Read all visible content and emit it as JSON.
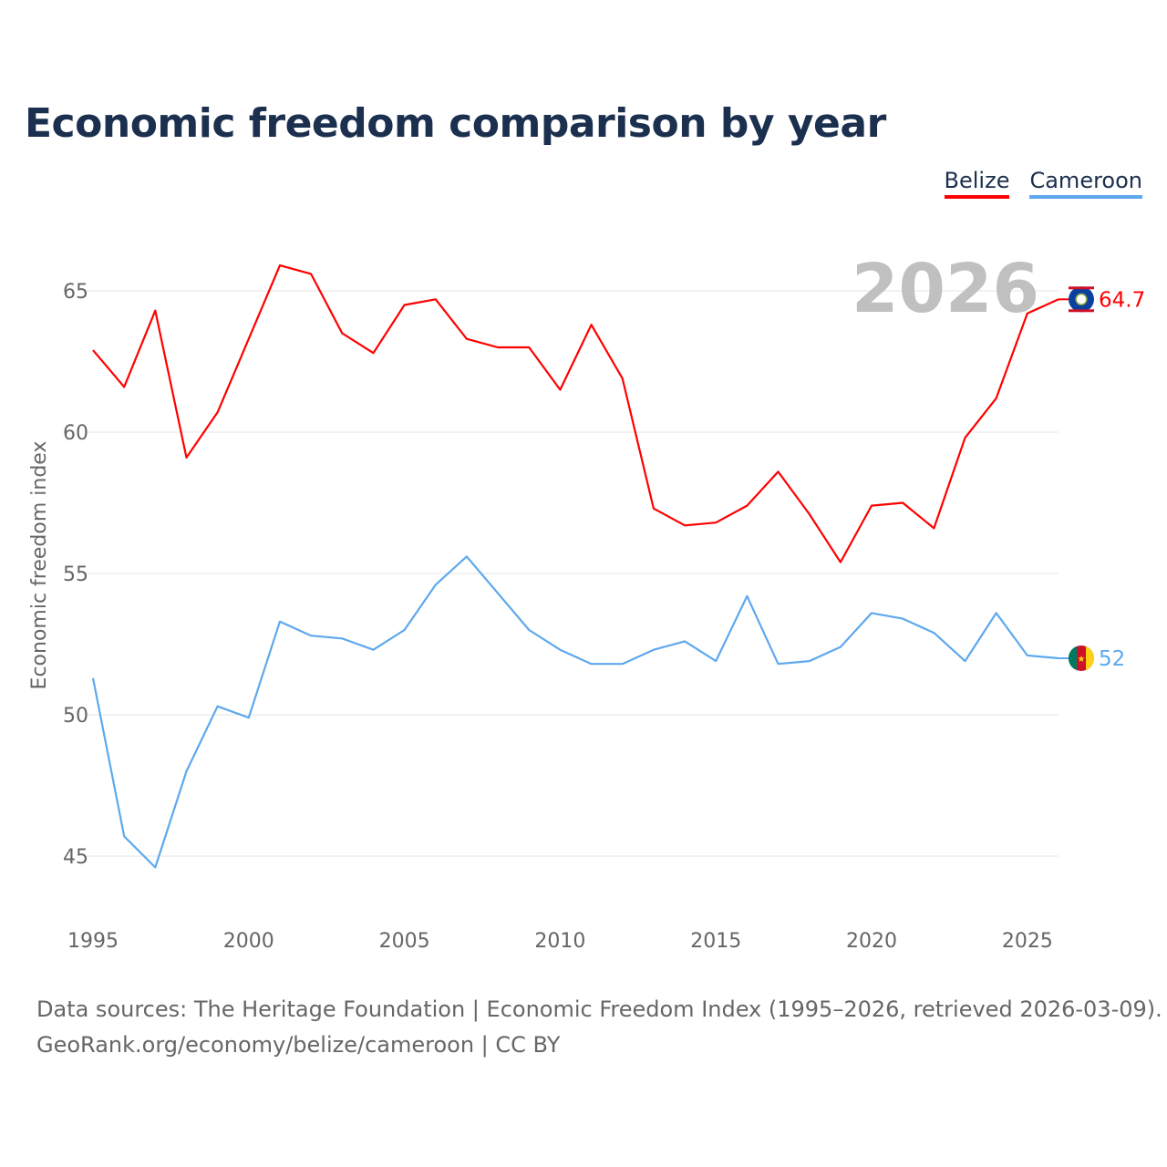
{
  "chart_data": {
    "type": "line",
    "title": "Economic freedom comparison by year",
    "xlabel": "",
    "ylabel": "Economic freedom index",
    "x": [
      1995,
      1996,
      1997,
      1998,
      1999,
      2000,
      2001,
      2002,
      2003,
      2004,
      2005,
      2006,
      2007,
      2008,
      2009,
      2010,
      2011,
      2012,
      2013,
      2014,
      2015,
      2016,
      2017,
      2018,
      2019,
      2020,
      2021,
      2022,
      2023,
      2024,
      2025,
      2026
    ],
    "xticks": [
      "1995",
      "2000",
      "2005",
      "2010",
      "2015",
      "2020",
      "2025"
    ],
    "yticks": [
      "45",
      "50",
      "55",
      "60",
      "65"
    ],
    "ylim": [
      43,
      67.5
    ],
    "xlim": [
      1995,
      2026
    ],
    "grid": true,
    "legend_placement": "top-right",
    "year_label": "2026",
    "series": [
      {
        "name": "Belize",
        "color": "#ff0000",
        "end_label": "64.7",
        "values": [
          62.9,
          61.6,
          64.3,
          59.1,
          60.7,
          63.3,
          65.9,
          65.6,
          63.5,
          62.8,
          64.5,
          64.7,
          63.3,
          63.0,
          63.0,
          61.5,
          63.8,
          61.9,
          57.3,
          56.7,
          56.8,
          57.4,
          58.6,
          57.1,
          55.4,
          57.4,
          57.5,
          56.6,
          59.8,
          61.2,
          64.2,
          64.7
        ]
      },
      {
        "name": "Cameroon",
        "color": "#5ea8ee",
        "end_label": "52",
        "values": [
          51.3,
          45.7,
          44.6,
          48.0,
          50.3,
          49.9,
          53.3,
          52.8,
          52.7,
          52.3,
          53.0,
          54.6,
          55.6,
          54.3,
          53.0,
          52.3,
          51.8,
          51.8,
          52.3,
          52.6,
          51.9,
          54.2,
          51.8,
          51.9,
          52.4,
          53.6,
          53.4,
          52.9,
          51.9,
          53.6,
          52.1,
          52.0
        ]
      }
    ]
  },
  "source": {
    "line1": "Data sources: The Heritage Foundation | Economic Freedom Index (1995–2026, retrieved 2026-03-09).",
    "line2": "GeoRank.org/economy/belize/cameroon | CC BY"
  }
}
